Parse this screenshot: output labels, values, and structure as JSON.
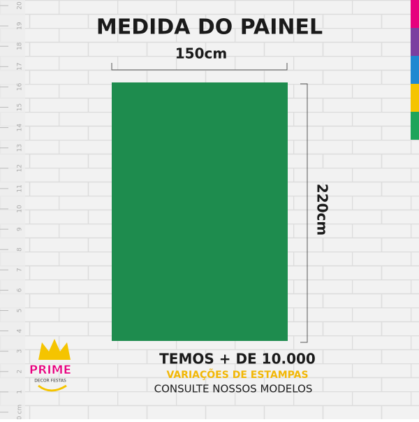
{
  "header": {
    "title": "MEDIDA DO PAINEL"
  },
  "panel": {
    "width_label": "150cm",
    "height_label": "220cm"
  },
  "promo": {
    "line1": "TEMOS + DE 10.000",
    "line2": "VARIAÇÕES DE ESTAMPAS",
    "line3": "CONSULTE NOSSOS MODELOS"
  },
  "logo": {
    "name": "PRIME",
    "tagline": "DECOR FESTAS"
  },
  "ruler": {
    "labels": [
      "0 cm",
      "1",
      "2",
      "3",
      "4",
      "5",
      "6",
      "7",
      "8",
      "9",
      "10",
      "11",
      "12",
      "13",
      "14",
      "15",
      "16",
      "17",
      "18",
      "19",
      "20"
    ]
  }
}
